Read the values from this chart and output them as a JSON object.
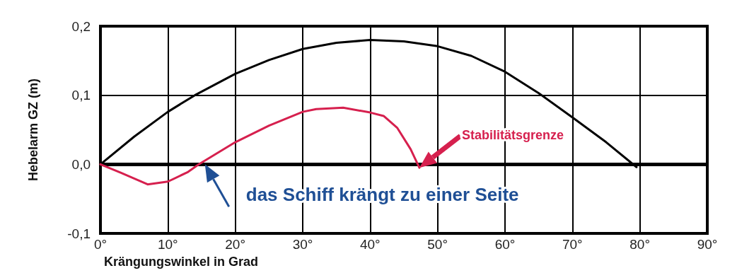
{
  "chart_data": {
    "type": "line",
    "xlabel": "Krängungswinkel in Grad",
    "ylabel": "Hebelarm GZ (m)",
    "xlim": [
      0,
      90
    ],
    "xticks": [
      {
        "value": 0,
        "label": "0°"
      },
      {
        "value": 10,
        "label": "10°"
      },
      {
        "value": 20,
        "label": "20°"
      },
      {
        "value": 30,
        "label": "30°"
      },
      {
        "value": 40,
        "label": "40°"
      },
      {
        "value": 50,
        "label": "50°"
      },
      {
        "value": 60,
        "label": "60°"
      },
      {
        "value": 70,
        "label": "70°"
      },
      {
        "value": 80,
        "label": "80°"
      },
      {
        "value": 90,
        "label": "90°"
      }
    ],
    "ylim": [
      -0.1,
      0.2
    ],
    "yticks": [
      {
        "value": -0.1,
        "label": "-0,1"
      },
      {
        "value": 0,
        "label": "0,0"
      },
      {
        "value": 0.1,
        "label": "0,1"
      },
      {
        "value": 0.2,
        "label": "0,2"
      }
    ],
    "grid": true,
    "marker": "none",
    "line_style": "solid",
    "ref_lines": [
      {
        "axis": "y",
        "value": 0,
        "color": "#000000"
      }
    ],
    "series": [
      {
        "color": "#000000",
        "x": [
          0,
          5,
          10,
          14,
          20,
          25,
          30,
          35,
          40,
          45,
          50,
          55,
          60,
          65,
          70,
          75,
          79.5
        ],
        "values": [
          0,
          0.04,
          0.076,
          0.1,
          0.131,
          0.151,
          0.167,
          0.176,
          0.18,
          0.178,
          0.171,
          0.157,
          0.134,
          0.103,
          0.068,
          0.032,
          -0.004
        ]
      },
      {
        "color": "#d6204e",
        "x": [
          0,
          3,
          7,
          10,
          13,
          14.6,
          20,
          25,
          30,
          32,
          36,
          40,
          42,
          44,
          46,
          47.3
        ],
        "values": [
          0,
          -0.012,
          -0.029,
          -0.025,
          -0.011,
          0,
          0.032,
          0.056,
          0.076,
          0.08,
          0.082,
          0.075,
          0.07,
          0.053,
          0.022,
          -0.005
        ]
      }
    ],
    "annotations": [
      "Stabilitätsgrenze",
      {
        "text": "das Schiff krängt zu einer Seite",
        "x": 15.5,
        "y": 0
      }
    ]
  }
}
